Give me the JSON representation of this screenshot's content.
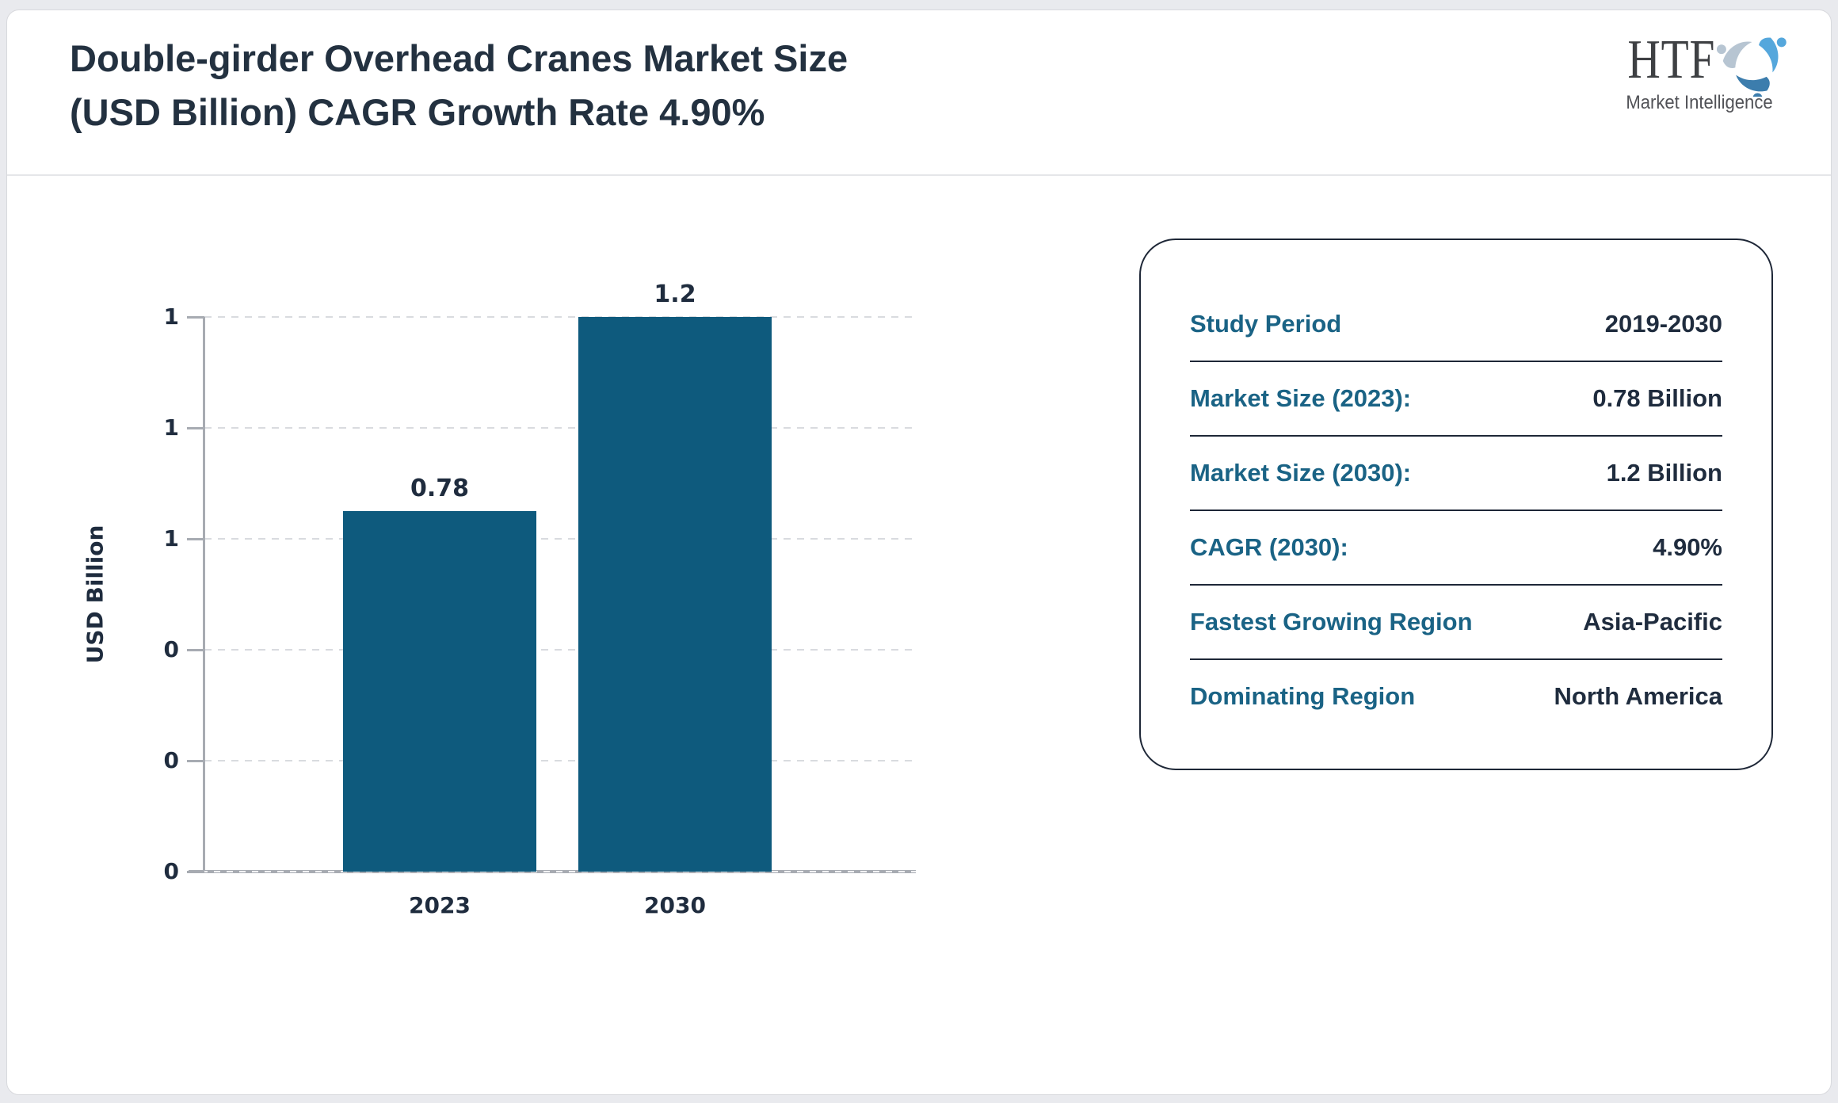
{
  "header": {
    "title_line1": "Double-girder Overhead Cranes Market Size",
    "title_line2": "(USD Billion) CAGR Growth Rate 4.90%"
  },
  "logo": {
    "brand": "HTF",
    "tagline": "Market Intelligence",
    "icon": "htf-swirl-logo-icon",
    "icon_colors": {
      "light_blue": "#55a7dc",
      "steel_blue": "#3c7dad",
      "gray_blue": "#b7c5d2"
    }
  },
  "chart_data": {
    "type": "bar",
    "title": "Double-girder Overhead Cranes Market Size (USD Billion) CAGR Growth Rate 4.90%",
    "categories": [
      "2023",
      "2030"
    ],
    "values": [
      0.78,
      1.2
    ],
    "bar_labels": [
      "0.78",
      "1.2"
    ],
    "xlabel": "",
    "ylabel": "USD Billion",
    "ylim": [
      0,
      1.2
    ],
    "ytick_values_bottom_to_top": [
      0,
      0.24,
      0.48,
      0.72,
      0.96,
      1.2
    ],
    "ytick_labels_bottom_to_top": [
      "0",
      "0",
      "0",
      "1",
      "1",
      "1"
    ],
    "grid": "horizontal-dashed",
    "legend_position": "none",
    "bar_color": "#0e5a7d"
  },
  "info_card": {
    "rows": [
      {
        "label": "Study Period",
        "value": "2019-2030"
      },
      {
        "label": "Market Size (2023):",
        "value": "0.78 Billion"
      },
      {
        "label": "Market Size (2030):",
        "value": "1.2 Billion"
      },
      {
        "label": "CAGR (2030):",
        "value": "4.90%"
      },
      {
        "label": "Fastest Growing Region",
        "value": "Asia-Pacific"
      },
      {
        "label": "Dominating Region",
        "value": "North America"
      }
    ],
    "label_color": "#1a6385",
    "value_color": "#1f2c3e"
  },
  "colors": {
    "title_text": "#233140",
    "chart_text": "#1f2c3e",
    "axis_gray": "#a7abb2",
    "gridline_gray": "#d9dbdf",
    "card_border": "#1e2737",
    "page_frame": "#e9eaee"
  }
}
